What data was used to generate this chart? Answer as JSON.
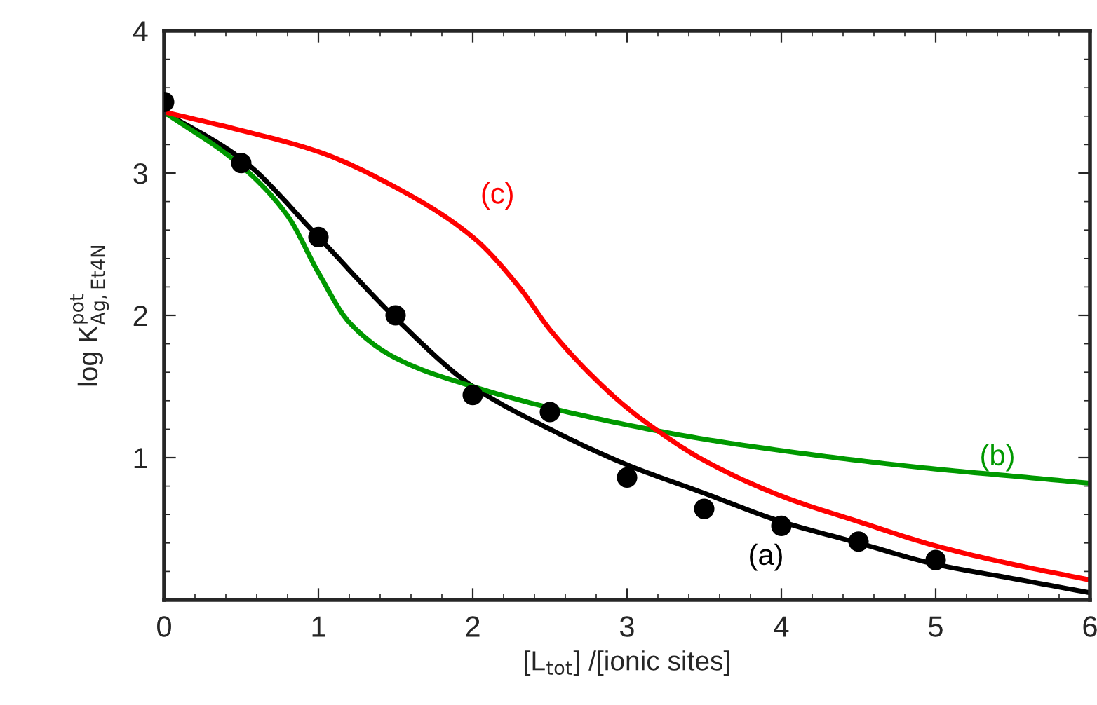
{
  "chart_data": {
    "type": "line",
    "xlabel": "[L$_{tot}$] /[ionic sites]",
    "ylabel": "log K$^{pot}$$_{Ag,Et4N}$",
    "xlim": [
      0,
      6
    ],
    "xticks": [
      0,
      1,
      2,
      3,
      4,
      5,
      6
    ],
    "ylim": [
      0,
      4
    ],
    "yticks": [
      1,
      2,
      3,
      4
    ],
    "grid": false,
    "legend": false,
    "line_style": "solid",
    "series": [
      {
        "name": "(a)",
        "color": "#000000",
        "x": [
          0,
          0.5,
          1,
          1.5,
          2,
          2.5,
          3,
          3.5,
          4,
          4.5,
          5,
          5.5,
          6
        ],
        "values": [
          3.43,
          3.1,
          2.55,
          1.98,
          1.5,
          1.2,
          0.95,
          0.75,
          0.55,
          0.4,
          0.25,
          0.15,
          0.05
        ]
      },
      {
        "name": "(b)",
        "color": "#009900",
        "x": [
          0,
          0.5,
          0.8,
          1,
          1.2,
          1.5,
          2,
          2.5,
          3,
          3.5,
          4,
          4.5,
          5,
          5.5,
          6
        ],
        "values": [
          3.43,
          3.05,
          2.7,
          2.3,
          1.95,
          1.7,
          1.5,
          1.35,
          1.23,
          1.13,
          1.05,
          0.98,
          0.92,
          0.87,
          0.82
        ]
      },
      {
        "name": "(c)",
        "color": "#ff0000",
        "x": [
          0,
          0.5,
          1,
          1.5,
          2,
          2.3,
          2.5,
          2.75,
          3,
          3.25,
          3.5,
          4,
          4.5,
          5,
          5.5,
          6
        ],
        "values": [
          3.43,
          3.3,
          3.15,
          2.9,
          2.55,
          2.2,
          1.9,
          1.6,
          1.35,
          1.15,
          0.98,
          0.73,
          0.55,
          0.38,
          0.25,
          0.14
        ]
      },
      {
        "type": "scatter",
        "marker": "circle",
        "color": "#000000",
        "x": [
          0,
          0.5,
          1,
          1.5,
          2,
          2.5,
          3,
          3.5,
          4,
          4.5,
          5
        ],
        "values": [
          3.5,
          3.07,
          2.55,
          2.0,
          1.44,
          1.32,
          0.86,
          0.64,
          0.52,
          0.41,
          0.28
        ]
      }
    ]
  }
}
